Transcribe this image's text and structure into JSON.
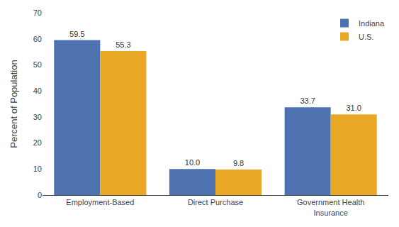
{
  "chart_data": {
    "type": "bar",
    "categories": [
      "Employment-Based",
      "Direct Purchase",
      "Government Health\nInsurance"
    ],
    "series": [
      {
        "name": "Indiana",
        "color": "#4E72B0",
        "values": [
          59.5,
          10.0,
          33.7
        ],
        "value_labels": [
          "59.5",
          "10.0",
          "33.7"
        ]
      },
      {
        "name": "U.S.",
        "color": "#E8A825",
        "values": [
          55.3,
          9.8,
          31.0
        ],
        "value_labels": [
          "55.3",
          "9.8",
          "31.0"
        ]
      }
    ],
    "ylabel": "Percent of Population",
    "ylim": [
      0,
      70
    ],
    "yticks": [
      0,
      10,
      20,
      30,
      40,
      50,
      60,
      70
    ],
    "grid": false,
    "legend": "upper right",
    "data_labels": true
  }
}
